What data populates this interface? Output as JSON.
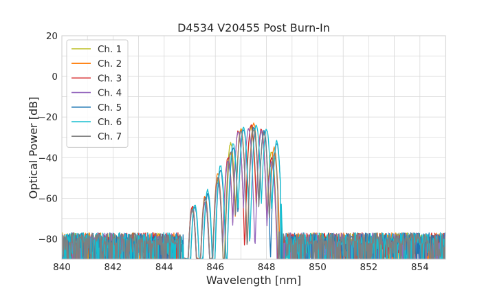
{
  "chart_data": {
    "type": "line",
    "title": "D4534 V20455 Post Burn-In",
    "xlabel": "Wavelength [nm]",
    "ylabel": "Optical Power [dB]",
    "xlim": [
      840,
      855
    ],
    "ylim": [
      -90,
      20
    ],
    "xticks": [
      840,
      842,
      844,
      846,
      848,
      850,
      852,
      854
    ],
    "yticks": [
      -80,
      -60,
      -40,
      -20,
      0,
      20
    ],
    "xtick_labels": [
      "840",
      "842",
      "844",
      "846",
      "848",
      "850",
      "852",
      "854"
    ],
    "ytick_labels": [
      "−80",
      "−60",
      "−40",
      "−20",
      "0",
      "20"
    ],
    "grid": true,
    "legend_position": "top-left",
    "noise_floor_db": -80,
    "series": [
      {
        "name": "Ch. 1",
        "color": "#bcbd22",
        "band_nm": [
          844.7,
          848.6
        ],
        "peaks": [
          [
            845.1,
            -66
          ],
          [
            845.6,
            -62
          ],
          [
            846.1,
            -51
          ],
          [
            846.6,
            -33
          ],
          [
            847.0,
            -26
          ],
          [
            847.4,
            -25
          ],
          [
            847.8,
            -27
          ],
          [
            848.2,
            -37
          ]
        ]
      },
      {
        "name": "Ch. 2",
        "color": "#ff7f0e",
        "band_nm": [
          844.6,
          848.6
        ],
        "peaks": [
          [
            845.1,
            -65
          ],
          [
            845.6,
            -59
          ],
          [
            846.1,
            -48
          ],
          [
            846.6,
            -38
          ],
          [
            847.0,
            -26
          ],
          [
            847.5,
            -23
          ],
          [
            847.9,
            -27
          ],
          [
            848.3,
            -35
          ]
        ]
      },
      {
        "name": "Ch. 3",
        "color": "#d62728",
        "band_nm": [
          844.6,
          848.5
        ],
        "peaks": [
          [
            845.1,
            -64
          ],
          [
            845.6,
            -60
          ],
          [
            846.1,
            -50
          ],
          [
            846.5,
            -40
          ],
          [
            846.9,
            -27
          ],
          [
            847.4,
            -24
          ],
          [
            847.8,
            -26
          ],
          [
            848.2,
            -40
          ]
        ]
      },
      {
        "name": "Ch. 4",
        "color": "#9467bd",
        "band_nm": [
          844.7,
          848.5
        ],
        "peaks": [
          [
            845.1,
            -66
          ],
          [
            845.6,
            -62
          ],
          [
            846.1,
            -52
          ],
          [
            846.5,
            -42
          ],
          [
            846.9,
            -27
          ],
          [
            847.3,
            -26
          ],
          [
            847.8,
            -27
          ],
          [
            848.2,
            -42
          ]
        ]
      },
      {
        "name": "Ch. 5",
        "color": "#1f77b4",
        "band_nm": [
          844.8,
          848.7
        ],
        "peaks": [
          [
            845.2,
            -64
          ],
          [
            845.7,
            -58
          ],
          [
            846.2,
            -46
          ],
          [
            846.7,
            -35
          ],
          [
            847.1,
            -26
          ],
          [
            847.5,
            -25
          ],
          [
            847.9,
            -27
          ],
          [
            848.4,
            -33
          ]
        ]
      },
      {
        "name": "Ch. 6",
        "color": "#17becf",
        "band_nm": [
          844.8,
          848.7
        ],
        "peaks": [
          [
            845.2,
            -63
          ],
          [
            845.7,
            -56
          ],
          [
            846.2,
            -44
          ],
          [
            846.7,
            -33
          ],
          [
            847.1,
            -25
          ],
          [
            847.6,
            -24
          ],
          [
            848.0,
            -26
          ],
          [
            848.4,
            -32
          ]
        ]
      },
      {
        "name": "Ch. 7",
        "color": "#7f7f7f",
        "band_nm": [
          844.7,
          848.6
        ],
        "peaks": [
          [
            845.1,
            -65
          ],
          [
            845.6,
            -60
          ],
          [
            846.1,
            -50
          ],
          [
            846.6,
            -37
          ],
          [
            847.0,
            -27
          ],
          [
            847.5,
            -26
          ],
          [
            847.9,
            -28
          ],
          [
            848.3,
            -38
          ]
        ]
      }
    ]
  }
}
